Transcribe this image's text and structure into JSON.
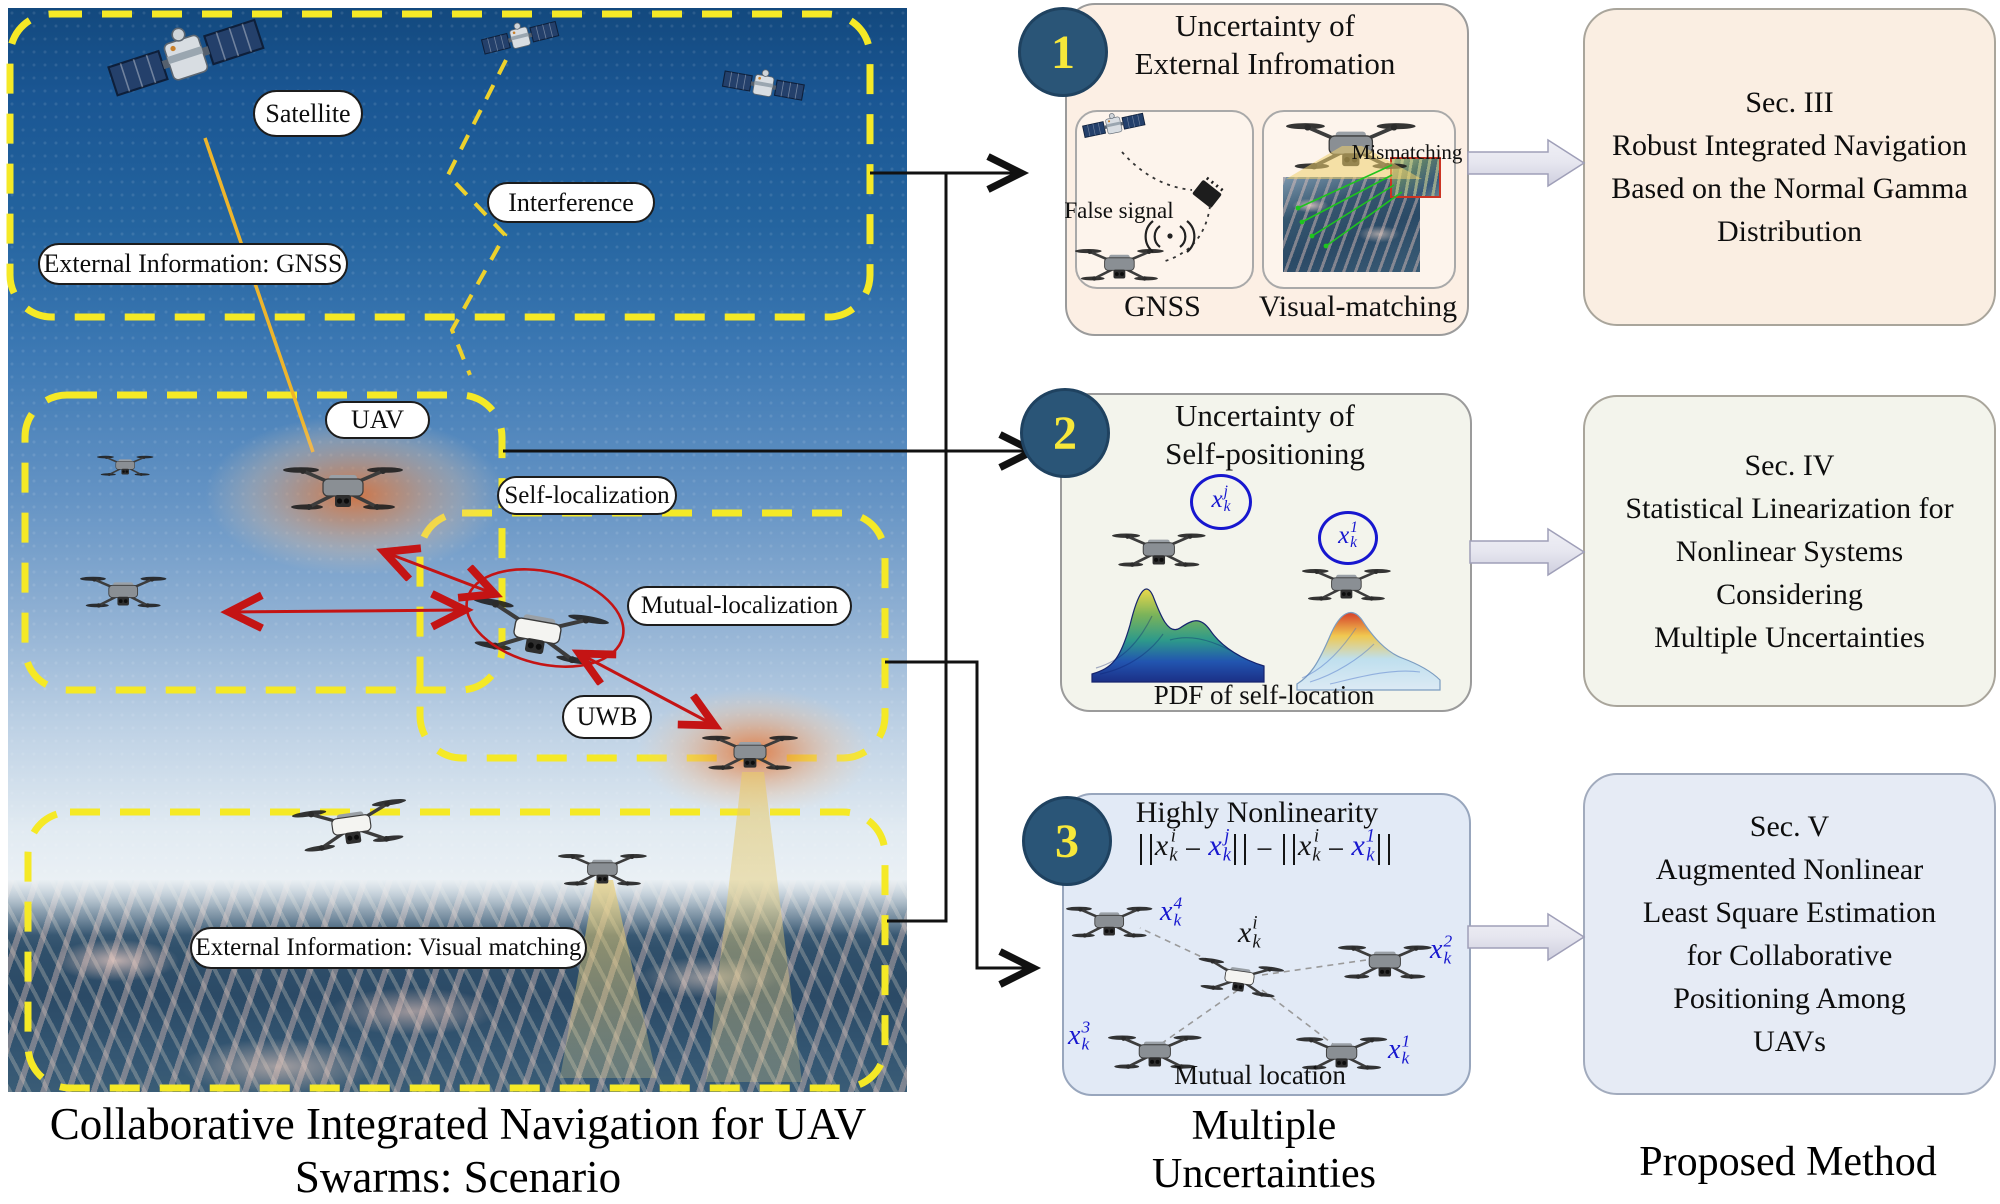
{
  "scene": {
    "caption_line1": "Collaborative Integrated Navigation for UAV",
    "caption_line2": "Swarms: Scenario",
    "labels": {
      "satellite": "Satellite",
      "interference": "Interference",
      "gnss_box": "External Information: GNSS",
      "uav": "UAV",
      "self_localization": "Self-localization",
      "mutual_localization": "Mutual-localization",
      "uwb": "UWB",
      "visual_box": "External Information: Visual matching"
    }
  },
  "panel1": {
    "number": "1",
    "title_line1": "Uncertainty of",
    "title_line2": "External Infromation",
    "false_signal": "False signal",
    "mismatching": "Mismatching",
    "gnss_label": "GNSS",
    "visual_label": "Visual-matching"
  },
  "panel2": {
    "number": "2",
    "title_line1": "Uncertainty of",
    "title_line2": "Self-positioning",
    "pdf_caption": "PDF of self-location",
    "tag_j": {
      "base": "x",
      "sub": "k",
      "sup": "j",
      "color": "#1717cf"
    },
    "tag_1": {
      "base": "x",
      "sub": "k",
      "sup": "1",
      "color": "#1717cf"
    }
  },
  "panel3": {
    "number": "3",
    "title": "Highly Nonlinearity",
    "mutual_caption": "Mutual location",
    "formula": {
      "tokens": [
        {
          "type": "bar"
        },
        {
          "type": "var",
          "base": "x",
          "sub": "k",
          "sup": "i",
          "color": "#141414"
        },
        {
          "type": "op",
          "text": "−"
        },
        {
          "type": "var",
          "base": "x",
          "sub": "k",
          "sup": "j",
          "color": "#1717cf"
        },
        {
          "type": "bar"
        },
        {
          "type": "op",
          "text": "−"
        },
        {
          "type": "bar"
        },
        {
          "type": "var",
          "base": "x",
          "sub": "k",
          "sup": "i",
          "color": "#141414"
        },
        {
          "type": "op",
          "text": "−"
        },
        {
          "type": "var",
          "base": "x",
          "sub": "k",
          "sup": "1",
          "color": "#1717cf"
        },
        {
          "type": "bar"
        }
      ]
    },
    "nodes": [
      {
        "base": "x",
        "sub": "k",
        "sup": "4",
        "color": "#1717cf"
      },
      {
        "base": "x",
        "sub": "k",
        "sup": "i",
        "color": "#141414"
      },
      {
        "base": "x",
        "sub": "k",
        "sup": "2",
        "color": "#1717cf"
      },
      {
        "base": "x",
        "sub": "k",
        "sup": "3",
        "color": "#1717cf"
      },
      {
        "base": "x",
        "sub": "k",
        "sup": "1",
        "color": "#1717cf"
      }
    ]
  },
  "right": {
    "boxes": [
      {
        "lines": [
          "Sec. III",
          "Robust Integrated Navigation",
          "Based on the Normal Gamma",
          "Distribution"
        ]
      },
      {
        "lines": [
          "Sec. IV",
          "Statistical Linearization for",
          "Nonlinear Systems",
          "Considering",
          "Multiple Uncertainties"
        ]
      },
      {
        "lines": [
          "Sec. V",
          "Augmented Nonlinear",
          "Least Square Estimation",
          "for Collaborative",
          "Positioning Among",
          "UAVs"
        ]
      }
    ]
  },
  "captions": {
    "multiple_line1": "Multiple",
    "multiple_line2": "Uncertainties",
    "proposed": "Proposed Method"
  },
  "colors": {
    "dash_yellow": "#f5e926",
    "circle_navy": "#2a5577",
    "circle_number": "#f7e73a",
    "arrow_red": "#c41414",
    "math_blue": "#1717cf",
    "panel1_bg": "#fcefe4",
    "panel2_bg": "#f3f4ec",
    "panel3_bg": "#e2eaf6",
    "sec3_bg": "#faeee2",
    "sec4_bg": "#f3f4ec",
    "sec5_bg": "#e6ebf5"
  }
}
